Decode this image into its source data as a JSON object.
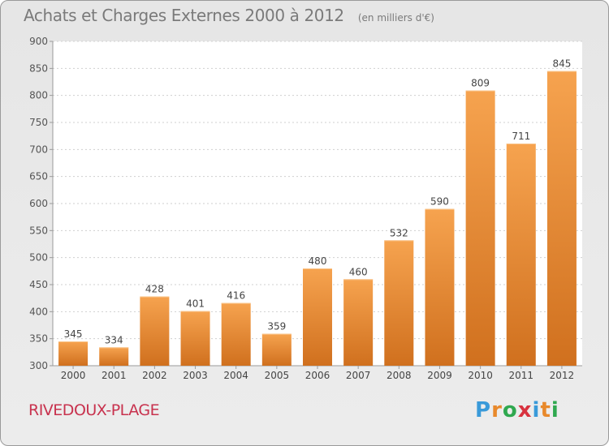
{
  "chart_data": {
    "type": "bar",
    "title": "Achats et Charges Externes 2000 à 2012",
    "subtitle": "(en milliers d'€)",
    "categories": [
      "2000",
      "2001",
      "2002",
      "2003",
      "2004",
      "2005",
      "2006",
      "2007",
      "2008",
      "2009",
      "2010",
      "2011",
      "2012"
    ],
    "values": [
      345,
      334,
      428,
      401,
      416,
      359,
      480,
      460,
      532,
      590,
      809,
      711,
      845
    ],
    "ylim": [
      300,
      900
    ],
    "yticks": [
      300,
      350,
      400,
      450,
      500,
      550,
      600,
      650,
      700,
      750,
      800,
      850,
      900
    ],
    "grid": true,
    "bar_color_top": "#f6a34f",
    "bar_color_bottom": "#d0701e"
  },
  "place": "RIVEDOUX-PLAGE",
  "logo": {
    "letters": [
      "P",
      "r",
      "o",
      "x",
      "i",
      "t",
      "i"
    ],
    "colors": [
      "#3a9ad9",
      "#e8892b",
      "#2fa84f",
      "#d8323f",
      "#3a9ad9",
      "#e8892b",
      "#2fa84f"
    ]
  }
}
